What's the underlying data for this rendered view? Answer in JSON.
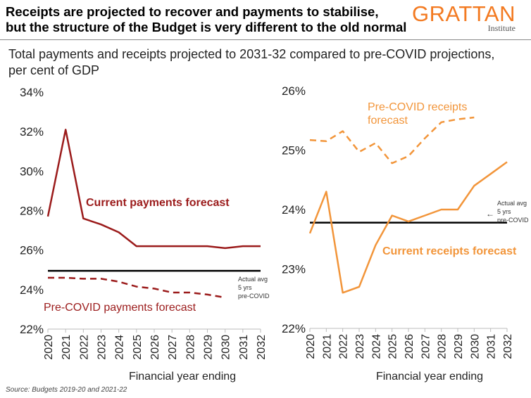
{
  "header": {
    "title_line1": "Receipts are projected to recover and payments to stabilise,",
    "title_line2": "but the structure of the Budget is very different to the old normal",
    "logo_text": "GRATTAN",
    "logo_subtext": "Institute"
  },
  "subtitle": "Total payments and receipts projected to 2031-32 compared to pre-COVID projections, per cent of GDP",
  "source": "Source: Budgets 2019-20 and 2021-22",
  "colors": {
    "current_payments": "#9b1b1b",
    "current_receipts": "#f2953a",
    "reference_line": "#000000",
    "axis_text": "#222222"
  },
  "chart_data": [
    {
      "type": "line",
      "xlabel": "Financial year ending",
      "ylabel": "",
      "ylim": [
        22,
        34
      ],
      "yticks": [
        "22%",
        "24%",
        "26%",
        "28%",
        "30%",
        "32%",
        "34%"
      ],
      "ytick_values": [
        22,
        24,
        26,
        28,
        30,
        32,
        34
      ],
      "x": [
        2020,
        2021,
        2022,
        2023,
        2024,
        2025,
        2026,
        2027,
        2028,
        2029,
        2030,
        2031,
        2032
      ],
      "grid": false,
      "series": [
        {
          "name": "Current payments forecast",
          "style": "solid",
          "color": "#9b1b1b",
          "x": [
            2020,
            2021,
            2022,
            2023,
            2024,
            2025,
            2026,
            2027,
            2028,
            2029,
            2030,
            2031,
            2032
          ],
          "values": [
            27.7,
            32.1,
            27.6,
            27.3,
            26.9,
            26.2,
            26.2,
            26.2,
            26.2,
            26.2,
            26.1,
            26.2,
            26.2
          ]
        },
        {
          "name": "Pre-COVID payments forecast",
          "style": "dashed",
          "color": "#9b1b1b",
          "x": [
            2020,
            2021,
            2022,
            2023,
            2024,
            2025,
            2026,
            2027,
            2028,
            2029,
            2030
          ],
          "values": [
            24.6,
            24.6,
            24.55,
            24.55,
            24.4,
            24.15,
            24.05,
            23.85,
            23.85,
            23.75,
            23.6
          ]
        }
      ],
      "reference_line": {
        "value": 24.95,
        "label_lines": [
          "Actual avg",
          "5 yrs",
          "pre-COVID"
        ]
      }
    },
    {
      "type": "line",
      "xlabel": "Financial year ending",
      "ylabel": "",
      "ylim": [
        22,
        26
      ],
      "yticks": [
        "22%",
        "23%",
        "24%",
        "25%",
        "26%"
      ],
      "ytick_values": [
        22,
        23,
        24,
        25,
        26
      ],
      "x": [
        2020,
        2021,
        2022,
        2023,
        2024,
        2025,
        2026,
        2027,
        2028,
        2029,
        2030,
        2031,
        2032
      ],
      "grid": false,
      "series": [
        {
          "name": "Current receipts forecast",
          "style": "solid",
          "color": "#f2953a",
          "x": [
            2020,
            2021,
            2022,
            2023,
            2024,
            2025,
            2026,
            2027,
            2028,
            2029,
            2030,
            2031,
            2032
          ],
          "values": [
            23.6,
            24.3,
            22.6,
            22.7,
            23.4,
            23.9,
            23.8,
            23.9,
            24.0,
            24.0,
            24.4,
            24.6,
            24.8
          ]
        },
        {
          "name": "Pre-COVID receipts forecast",
          "style": "dashed",
          "color": "#f2953a",
          "x": [
            2020,
            2021,
            2022,
            2023,
            2024,
            2025,
            2026,
            2027,
            2028,
            2029,
            2030
          ],
          "values": [
            25.17,
            25.15,
            25.32,
            24.97,
            25.12,
            24.78,
            24.9,
            25.2,
            25.47,
            25.52,
            25.55
          ]
        }
      ],
      "reference_line": {
        "value": 23.78,
        "label_lines": [
          "Actual avg",
          "5 yrs",
          "pre-COVID"
        ]
      }
    }
  ]
}
